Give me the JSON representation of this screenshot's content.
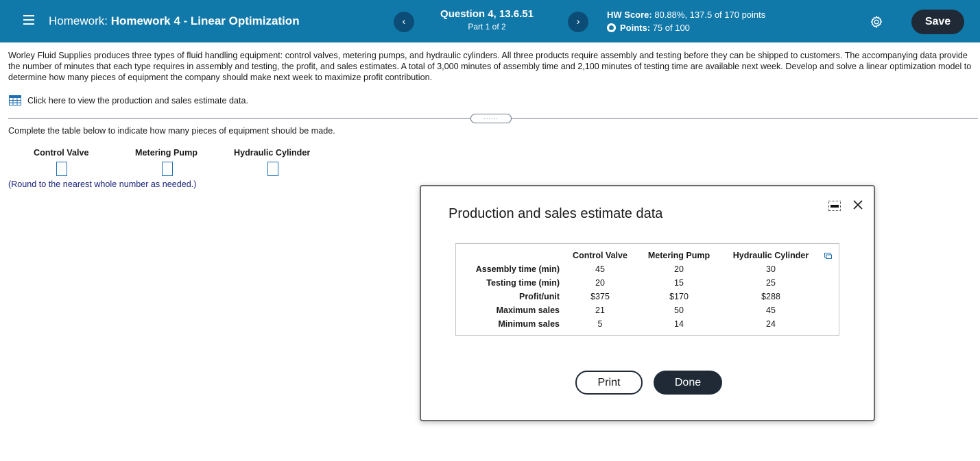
{
  "header": {
    "hw_prefix": "Homework:",
    "hw_name": "Homework 4 - Linear Optimization",
    "prev_glyph": "‹",
    "next_glyph": "›",
    "question_title": "Question 4, 13.6.51",
    "question_part": "Part 1 of 2",
    "score_label": "HW Score:",
    "score_value": "80.88%, 137.5 of 170 points",
    "points_label": "Points:",
    "points_value": "75 of 100",
    "save_label": "Save",
    "bar_color": "#1179a9",
    "icons": [
      "menu-icon",
      "settings-gear-icon",
      "points-partial-icon"
    ]
  },
  "question": {
    "text": "Worley Fluid Supplies produces three types of fluid handling equipment: control valves, metering pumps, and hydraulic cylinders. All three products require assembly and testing before they can be shipped to customers. The accompanying data provide the number of minutes that each type requires in assembly and testing, the profit, and sales estimates. A total of 3,000 minutes of assembly time and 2,100 minutes of testing time are available next week. Develop and solve a linear optimization model to determine how many pieces of equipment the company should make next week to maximize profit contribution.",
    "data_link": "Click here to view the production and sales estimate data.",
    "dots": "......",
    "instruction": "Complete the table below to indicate how many pieces of equipment should be made.",
    "columns": [
      "Control Valve",
      "Metering Pump",
      "Hydraulic Cylinder"
    ],
    "answers": [
      "",
      "",
      ""
    ],
    "round_note": "(Round to the nearest whole number as needed.)"
  },
  "dialog": {
    "title": "Production and sales estimate data",
    "table": {
      "headers": [
        "Control Valve",
        "Metering Pump",
        "Hydraulic Cylinder"
      ],
      "rows": [
        {
          "label": "Assembly time (min)",
          "values": [
            "45",
            "20",
            "30"
          ]
        },
        {
          "label": "Testing time (min)",
          "values": [
            "20",
            "15",
            "25"
          ]
        },
        {
          "label": "Profit/unit",
          "values": [
            "$375",
            "$170",
            "$288"
          ]
        },
        {
          "label": "Maximum sales",
          "values": [
            "21",
            "50",
            "45"
          ]
        },
        {
          "label": "Minimum sales",
          "values": [
            "5",
            "14",
            "24"
          ]
        }
      ]
    },
    "print_label": "Print",
    "done_label": "Done"
  }
}
